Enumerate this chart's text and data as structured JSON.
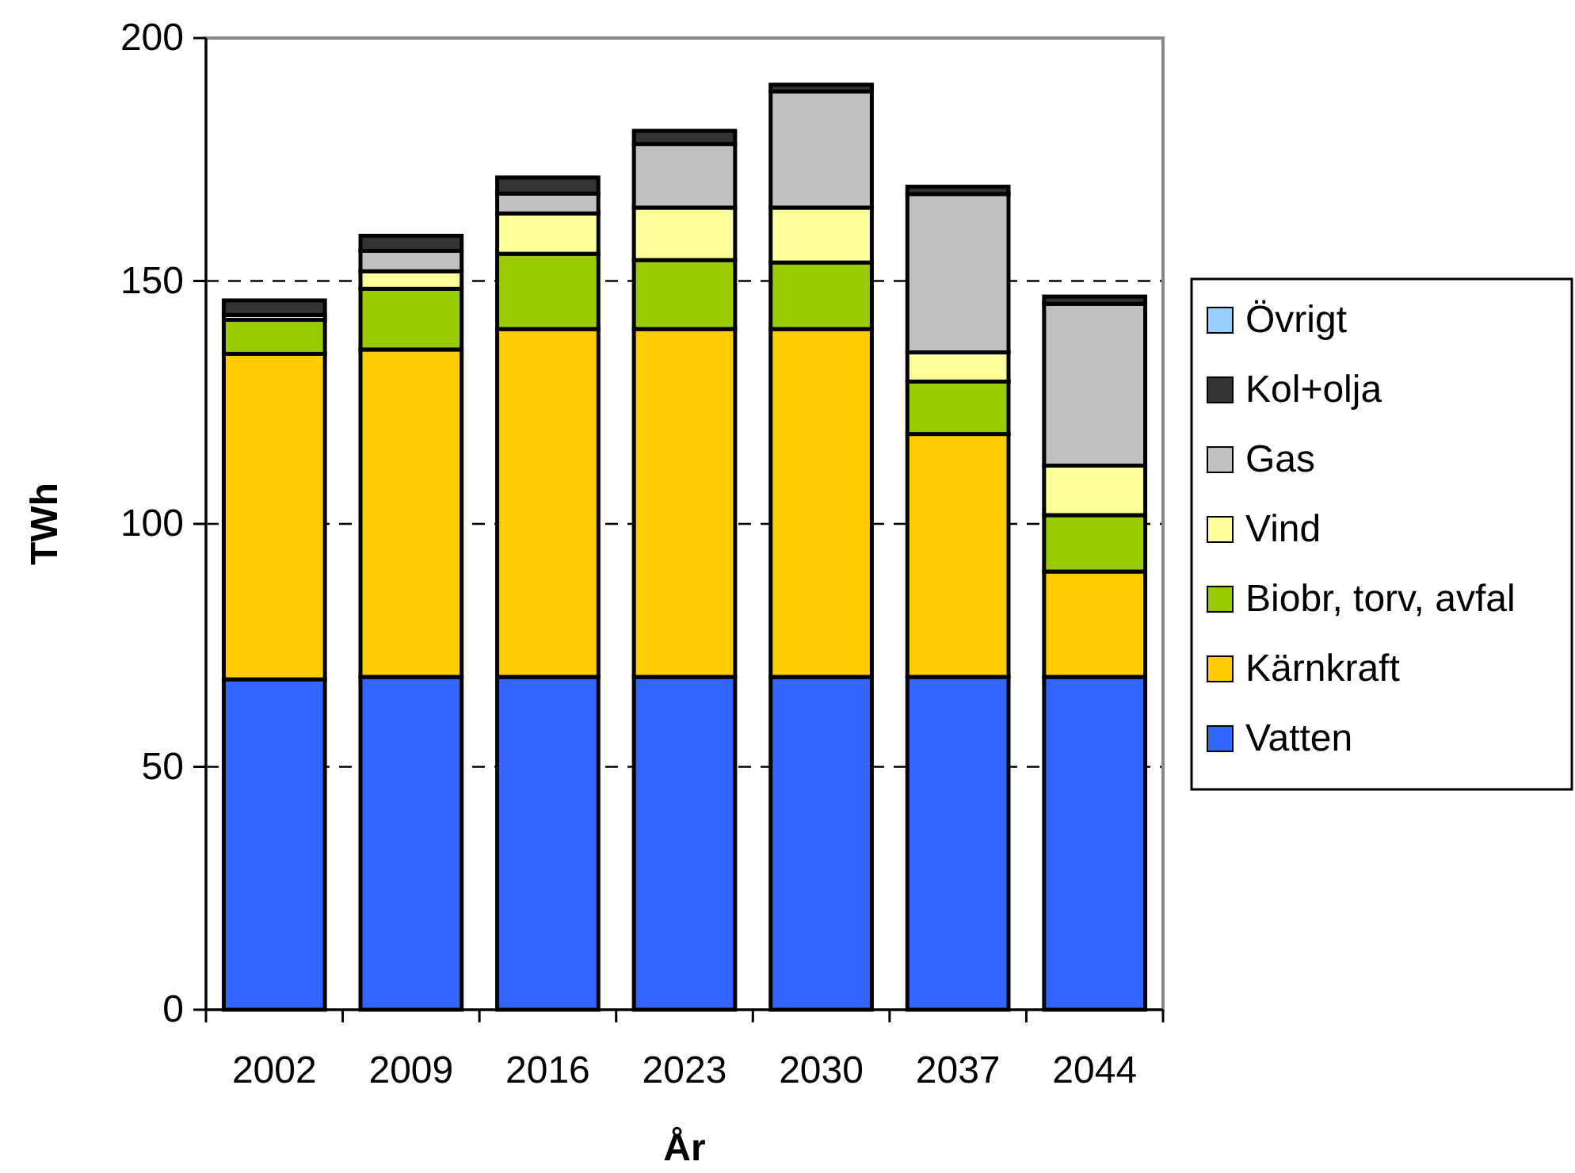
{
  "chart_data": {
    "type": "bar",
    "stacked": true,
    "xlabel": "År",
    "ylabel": "TWh",
    "categories": [
      "2002",
      "2009",
      "2016",
      "2023",
      "2030",
      "2037",
      "2044"
    ],
    "series": [
      {
        "name": "Vatten",
        "color": "#3366ff",
        "values": [
          68,
          68.5,
          68.5,
          68.5,
          68.5,
          68.5,
          68.5
        ]
      },
      {
        "name": "Kärnkraft",
        "color": "#ffcc00",
        "values": [
          67,
          67.4,
          71.6,
          71.6,
          71.6,
          50,
          21.7
        ]
      },
      {
        "name": "Biobr, torv, avfal",
        "color": "#99cc00",
        "values": [
          7,
          12.5,
          15.5,
          14.2,
          13.7,
          10.8,
          11.6
        ]
      },
      {
        "name": "Vind",
        "color": "#ffff99",
        "values": [
          1,
          3.6,
          8.3,
          10.8,
          11.3,
          6,
          10.2
        ]
      },
      {
        "name": "Gas",
        "color": "#c0c0c0",
        "values": [
          null,
          4.2,
          4.1,
          13.1,
          23.9,
          32.6,
          33.3
        ]
      },
      {
        "name": "Kol+olja",
        "color": "#333333",
        "values": [
          3,
          3.1,
          3.3,
          2.7,
          1.4,
          1.5,
          1.5
        ]
      },
      {
        "name": "Övrigt",
        "color": "#99ccff",
        "values": [
          0,
          0,
          0,
          0,
          0,
          0,
          0
        ]
      }
    ],
    "ylim": [
      0,
      200
    ],
    "yticks": [
      0,
      50,
      100,
      150,
      200
    ],
    "grid": "y",
    "legend": "right"
  }
}
